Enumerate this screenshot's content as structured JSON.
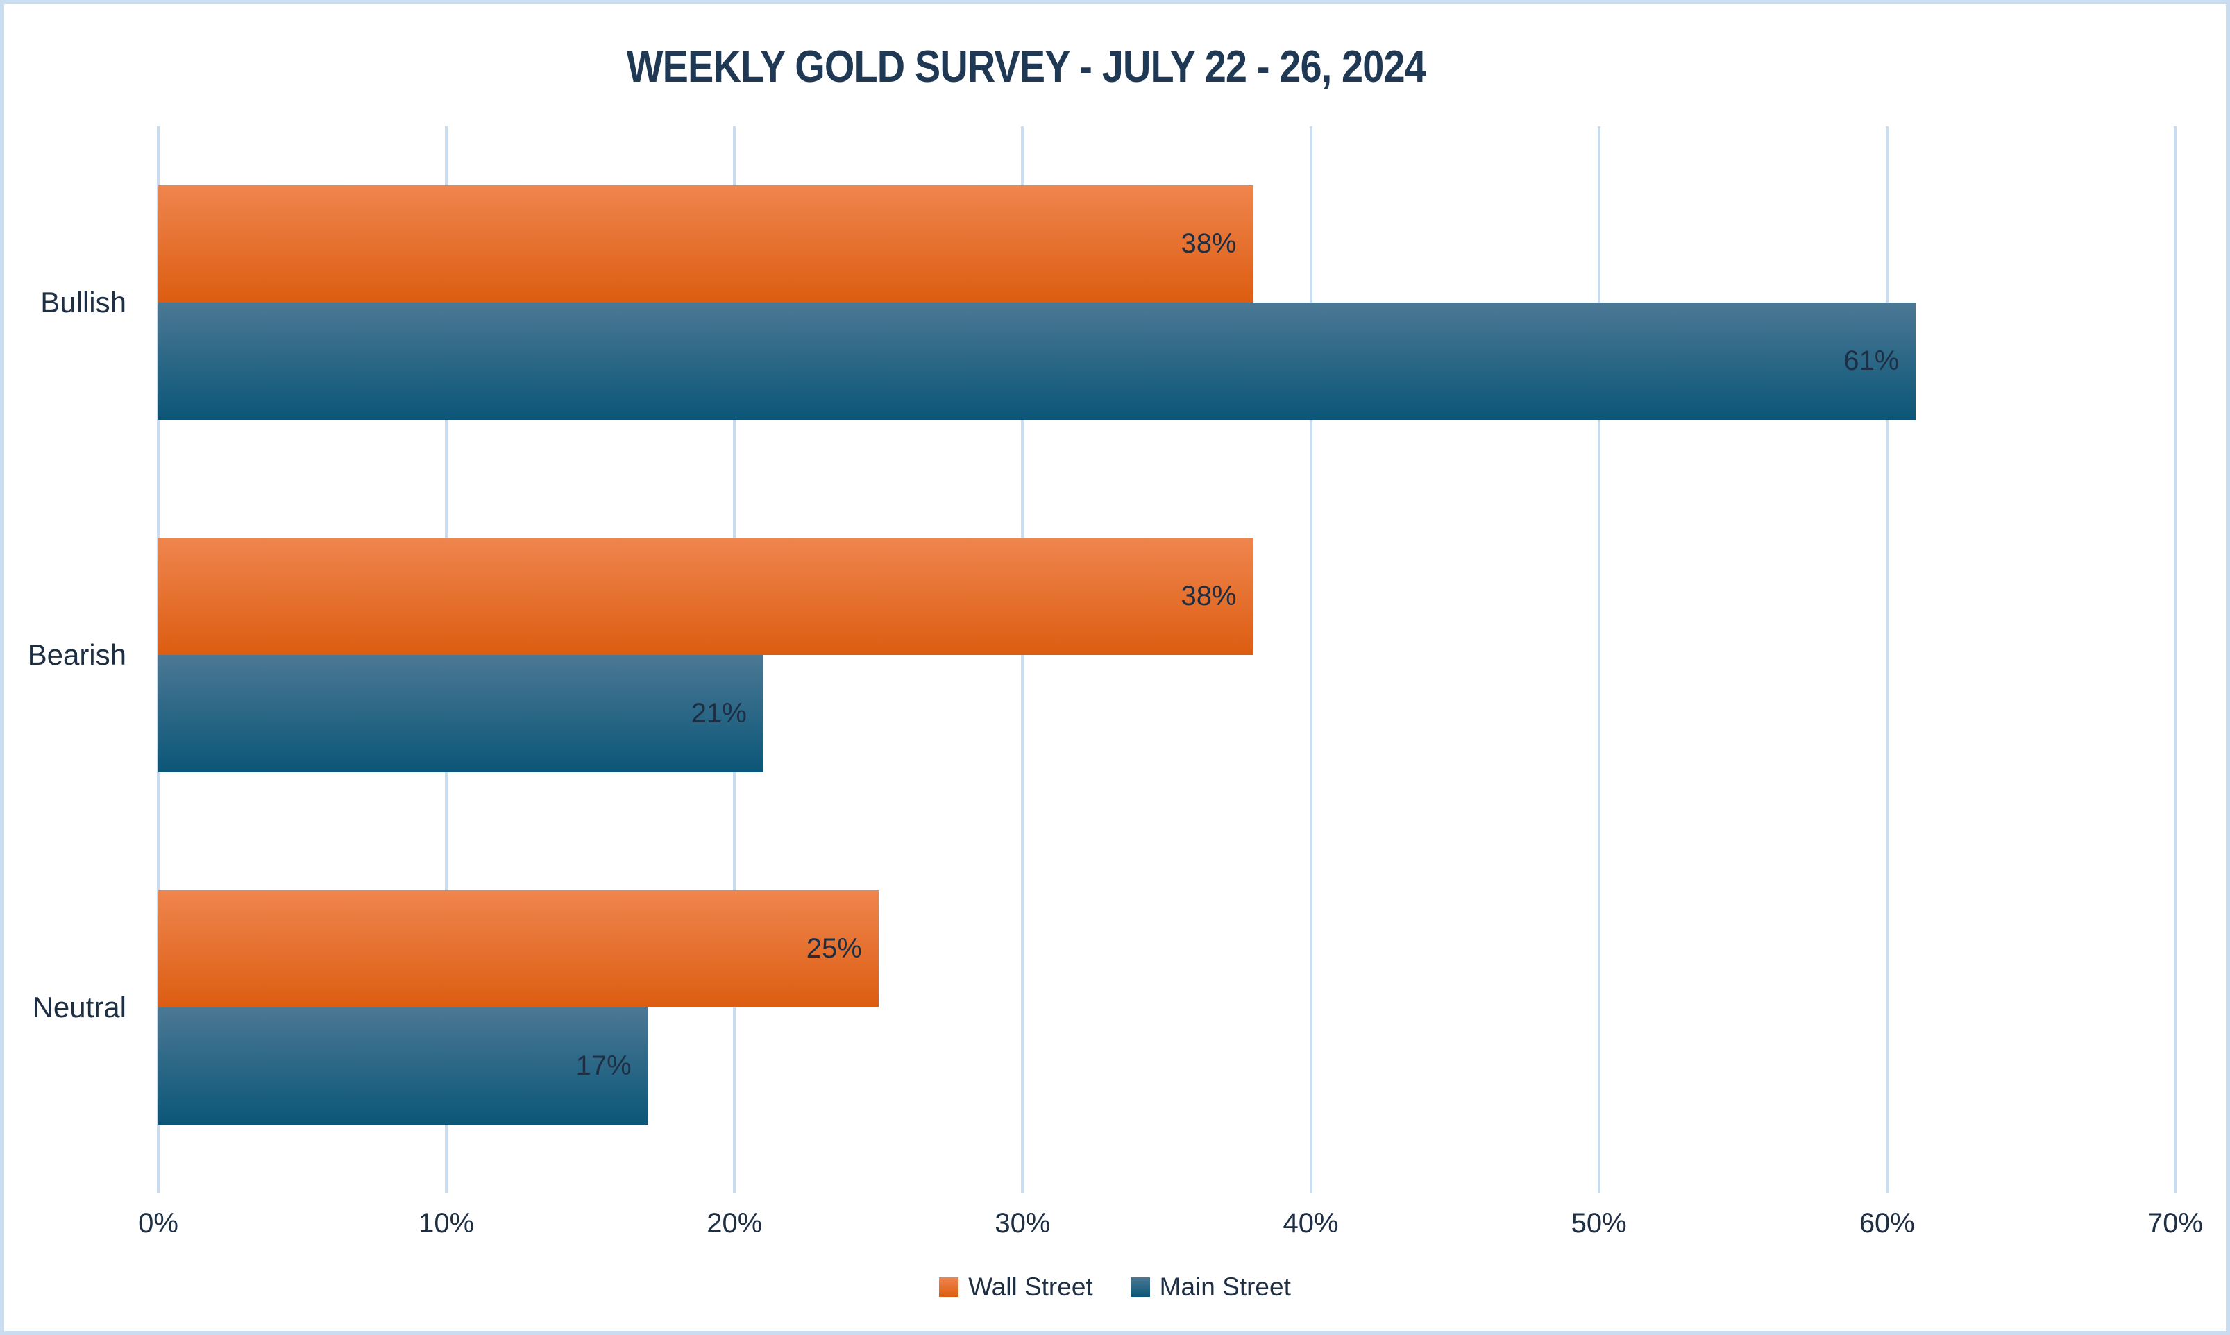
{
  "chart_data": {
    "type": "bar",
    "orientation": "horizontal",
    "title": "WEEKLY GOLD SURVEY - JULY 22 - 26, 2024",
    "categories": [
      "Bullish",
      "Bearish",
      "Neutral"
    ],
    "series": [
      {
        "name": "Wall Street",
        "values": [
          38,
          38,
          25
        ]
      },
      {
        "name": "Main Street",
        "values": [
          61,
          21,
          17
        ]
      }
    ],
    "data_label_format": "{value}%",
    "xlabel": "",
    "ylabel": "",
    "xlim": [
      0,
      70
    ],
    "x_tick_values": [
      0,
      10,
      20,
      30,
      40,
      50,
      60,
      70
    ],
    "x_tick_labels": [
      "0%",
      "10%",
      "20%",
      "30%",
      "40%",
      "50%",
      "60%",
      "70%"
    ],
    "grid": true,
    "legend_position": "bottom"
  },
  "colors": {
    "page_border": "#c9dcf0",
    "gridline": "#c9dcf0",
    "title_text": "#1f3954",
    "label_text": "#1e2f44",
    "wall_street_top": "#ef854e",
    "wall_street_bottom": "#dc5d11",
    "main_street_top": "#4b7894",
    "main_street_bottom": "#0b5678"
  }
}
